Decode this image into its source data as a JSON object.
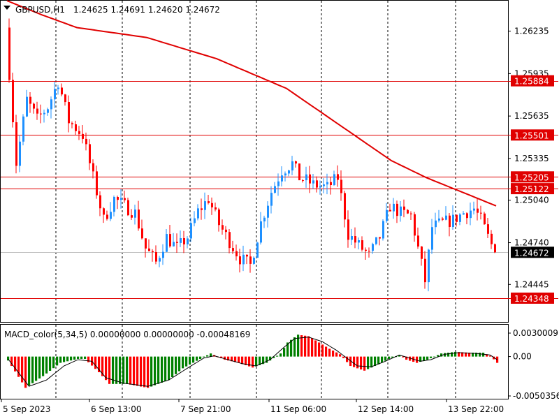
{
  "chart_data": [
    {
      "type": "candlestick",
      "symbol": "GBPUSD,H1",
      "ohlc_header": [
        "1.24625",
        "1.24691",
        "1.24620",
        "1.24672"
      ],
      "ylim": [
        1.2418,
        1.2645
      ],
      "y_ticks": [
        "1.26235",
        "1.25935",
        "1.25635",
        "1.25335",
        "1.25040",
        "1.24740",
        "1.24445"
      ],
      "x_ticks": [
        "5 Sep 2023",
        "6 Sep 13:00",
        "7 Sep 21:00",
        "11 Sep 06:00",
        "12 Sep 14:00",
        "13 Sep 22:00"
      ],
      "candle_count": 140,
      "grid": true,
      "levels": [
        {
          "label": "1.25884",
          "value": 1.25884
        },
        {
          "label": "1.25501",
          "value": 1.25501
        },
        {
          "label": "1.25205",
          "value": 1.25205
        },
        {
          "label": "1.25122",
          "value": 1.25122
        },
        {
          "label": "1.24348",
          "value": 1.24348
        }
      ],
      "current_price": {
        "label": "1.24672",
        "value": 1.24672
      },
      "moving_average_path": [
        [
          0,
          1.2645
        ],
        [
          10,
          1.2635
        ],
        [
          20,
          1.2626
        ],
        [
          40,
          1.2619
        ],
        [
          60,
          1.2604
        ],
        [
          80,
          1.2583
        ],
        [
          100,
          1.2549
        ],
        [
          110,
          1.2532
        ],
        [
          120,
          1.252
        ],
        [
          125,
          1.2515
        ],
        [
          140,
          1.25
        ]
      ],
      "price_path": [
        [
          0,
          1.2626
        ],
        [
          3,
          1.253
        ],
        [
          6,
          1.2575
        ],
        [
          9,
          1.2561
        ],
        [
          12,
          1.257
        ],
        [
          15,
          1.2588
        ],
        [
          18,
          1.256
        ],
        [
          22,
          1.255
        ],
        [
          26,
          1.251
        ],
        [
          28,
          1.249
        ],
        [
          31,
          1.2505
        ],
        [
          34,
          1.25
        ],
        [
          37,
          1.2495
        ],
        [
          40,
          1.247
        ],
        [
          43,
          1.246
        ],
        [
          46,
          1.2478
        ],
        [
          49,
          1.247
        ],
        [
          52,
          1.2478
        ],
        [
          55,
          1.2496
        ],
        [
          58,
          1.2505
        ],
        [
          61,
          1.2487
        ],
        [
          64,
          1.2475
        ],
        [
          67,
          1.2463
        ],
        [
          70,
          1.2458
        ],
        [
          73,
          1.2488
        ],
        [
          76,
          1.251
        ],
        [
          79,
          1.2525
        ],
        [
          82,
          1.253
        ],
        [
          84,
          1.252
        ],
        [
          86,
          1.2518
        ],
        [
          88,
          1.2515
        ],
        [
          92,
          1.2513
        ],
        [
          95,
          1.252
        ],
        [
          98,
          1.248
        ],
        [
          101,
          1.2472
        ],
        [
          104,
          1.2465
        ],
        [
          107,
          1.2478
        ],
        [
          110,
          1.25
        ],
        [
          113,
          1.2495
        ],
        [
          116,
          1.2493
        ],
        [
          118,
          1.247
        ],
        [
          120,
          1.2447
        ],
        [
          122,
          1.2485
        ],
        [
          125,
          1.2488
        ],
        [
          128,
          1.249
        ],
        [
          131,
          1.2495
        ],
        [
          134,
          1.2498
        ],
        [
          136,
          1.249
        ],
        [
          138,
          1.2478
        ],
        [
          140,
          1.2467
        ]
      ]
    },
    {
      "type": "histogram",
      "indicator_label": "MACD_color(5,34,5) 0.00000000 0.00000000 -0.00048169",
      "ylim": [
        -0.0050356,
        0.0030009
      ],
      "y_ticks": [
        "0.0030009",
        "0.00",
        "-0.0050356"
      ],
      "bar_path": [
        [
          0,
          -0.0005
        ],
        [
          5,
          -0.004
        ],
        [
          10,
          -0.0025
        ],
        [
          15,
          -0.0008
        ],
        [
          20,
          -0.0003
        ],
        [
          22,
          -0.0003
        ],
        [
          26,
          -0.002
        ],
        [
          29,
          -0.0035
        ],
        [
          34,
          -0.0035
        ],
        [
          40,
          -0.004
        ],
        [
          46,
          -0.003
        ],
        [
          50,
          -0.0015
        ],
        [
          55,
          -0.0003
        ],
        [
          58,
          0.0004
        ],
        [
          62,
          -0.0004
        ],
        [
          66,
          -0.0008
        ],
        [
          70,
          -0.0014
        ],
        [
          74,
          -0.0008
        ],
        [
          78,
          0.0004
        ],
        [
          80,
          0.0018
        ],
        [
          83,
          0.0028
        ],
        [
          86,
          0.0026
        ],
        [
          89,
          0.0018
        ],
        [
          92,
          0.001
        ],
        [
          95,
          0.0003
        ],
        [
          98,
          -0.0012
        ],
        [
          102,
          -0.0018
        ],
        [
          106,
          -0.001
        ],
        [
          109,
          -0.0003
        ],
        [
          112,
          0.0002
        ],
        [
          114,
          -0.0004
        ],
        [
          117,
          -0.0008
        ],
        [
          120,
          -0.0004
        ],
        [
          124,
          0.0004
        ],
        [
          128,
          0.0006
        ],
        [
          132,
          0.0005
        ],
        [
          136,
          0.0005
        ],
        [
          138,
          0.0001
        ],
        [
          140,
          -0.0008
        ]
      ],
      "signal_path": [
        [
          0,
          -0.0003
        ],
        [
          6,
          -0.0038
        ],
        [
          11,
          -0.003
        ],
        [
          16,
          -0.0012
        ],
        [
          20,
          -0.0004
        ],
        [
          24,
          -0.0006
        ],
        [
          28,
          -0.0027
        ],
        [
          33,
          -0.0034
        ],
        [
          40,
          -0.0038
        ],
        [
          46,
          -0.003
        ],
        [
          52,
          -0.0013
        ],
        [
          56,
          -0.0002
        ],
        [
          59,
          0.0001
        ],
        [
          63,
          -0.0004
        ],
        [
          67,
          -0.0009
        ],
        [
          71,
          -0.0012
        ],
        [
          75,
          -0.0004
        ],
        [
          79,
          0.0012
        ],
        [
          82,
          0.0023
        ],
        [
          86,
          0.0025
        ],
        [
          90,
          0.0019
        ],
        [
          94,
          0.0008
        ],
        [
          97,
          -0.0002
        ],
        [
          100,
          -0.0012
        ],
        [
          104,
          -0.0013
        ],
        [
          108,
          -0.0006
        ],
        [
          112,
          0.0002
        ],
        [
          115,
          -0.0002
        ],
        [
          118,
          -0.0006
        ],
        [
          121,
          -0.0004
        ],
        [
          125,
          0.0003
        ],
        [
          129,
          0.0005
        ],
        [
          134,
          0.0004
        ],
        [
          138,
          0.0002
        ],
        [
          140,
          -0.0004
        ]
      ]
    }
  ],
  "colors": {
    "bull": "#1e90ff",
    "bear": "#ff0000",
    "macd_pos": "#008000",
    "macd_neg": "#ff0000",
    "level_line": "#e00000",
    "label_bg": "#e00000",
    "label_fg": "#ffffff",
    "current_bg": "#000000",
    "current_fg": "#ffffff",
    "ma_line": "#e00000",
    "grid": "#000000",
    "current_line": "#c0c0c0",
    "text": "#000000"
  }
}
